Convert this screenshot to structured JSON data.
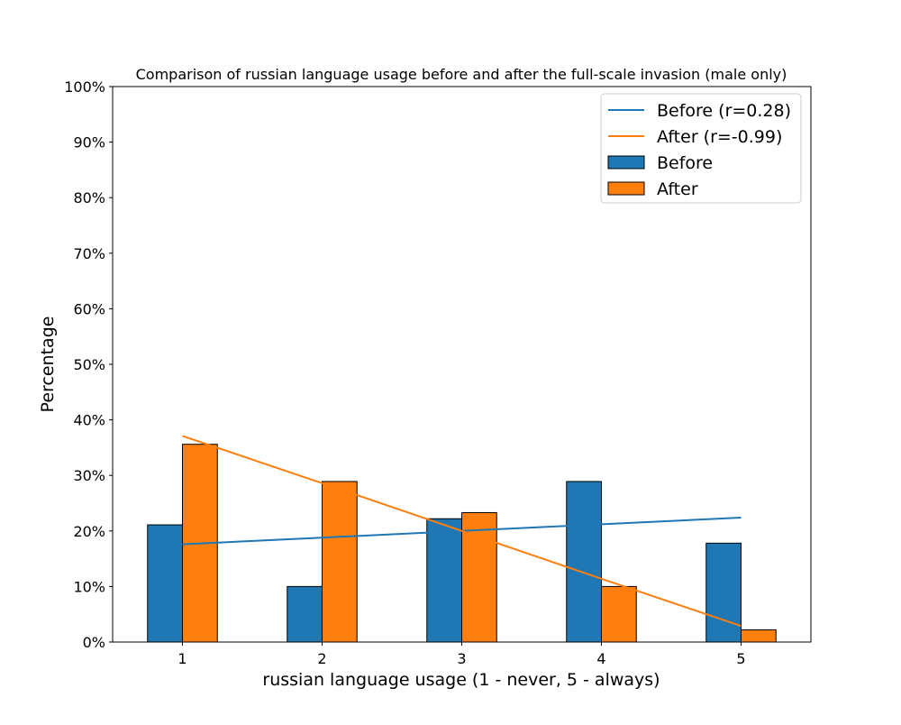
{
  "chart_data": {
    "type": "bar",
    "title": "Comparison of russian language usage before and after the full-scale invasion (male only)",
    "xlabel": "russian language usage (1 - never, 5 - always)",
    "ylabel": "Percentage",
    "categories": [
      "1",
      "2",
      "3",
      "4",
      "5"
    ],
    "x": [
      1,
      2,
      3,
      4,
      5
    ],
    "ylim": [
      0,
      100
    ],
    "yticks": [
      0,
      10,
      20,
      30,
      40,
      50,
      60,
      70,
      80,
      90,
      100
    ],
    "ytick_labels": [
      "0%",
      "10%",
      "20%",
      "30%",
      "40%",
      "50%",
      "60%",
      "70%",
      "80%",
      "90%",
      "100%"
    ],
    "grid": false,
    "legend_position": "top-right",
    "series": [
      {
        "name": "Before",
        "kind": "bar",
        "color": "#1f77b4",
        "values": [
          21.1,
          10.0,
          22.2,
          28.9,
          17.8
        ]
      },
      {
        "name": "After",
        "kind": "bar",
        "color": "#ff7f0e",
        "values": [
          35.6,
          28.9,
          23.3,
          10.0,
          2.2
        ]
      }
    ],
    "trend_lines": [
      {
        "name": "Before (r=0.28)",
        "kind": "line",
        "color": "#1f77b4",
        "values": [
          17.6,
          18.8,
          20.0,
          21.2,
          22.4
        ]
      },
      {
        "name": "After (r=-0.99)",
        "kind": "line",
        "color": "#ff7f0e",
        "values": [
          37.1,
          28.6,
          20.0,
          11.4,
          2.9
        ]
      }
    ]
  }
}
